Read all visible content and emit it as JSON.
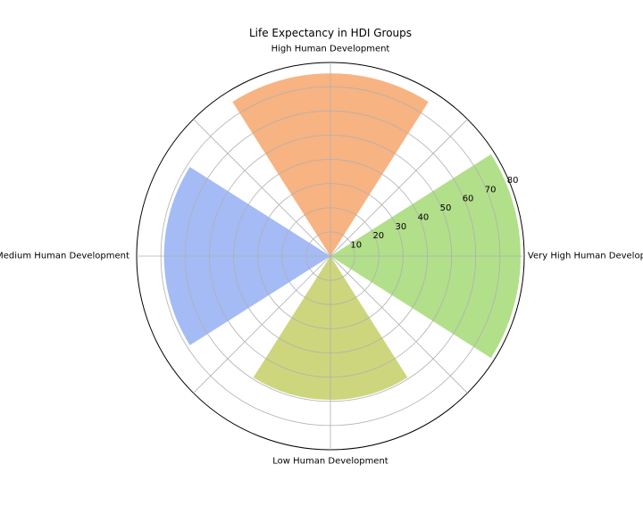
{
  "chart_data": {
    "type": "bar",
    "subtype": "polar",
    "title": "Life Expectancy in HDI Groups",
    "categories": [
      "Very High Human Development",
      "High Human Development",
      "Medium Human Development",
      "Low Human Development"
    ],
    "values": [
      78.5,
      75.5,
      68.7,
      59.4
    ],
    "colors": [
      "#b2df8a",
      "#f7b382",
      "#a4bbf5",
      "#cdd67c"
    ],
    "rlim": [
      0,
      80
    ],
    "rticks": [
      10,
      20,
      30,
      40,
      50,
      60,
      70,
      80
    ],
    "grid": true,
    "legend": "none"
  }
}
